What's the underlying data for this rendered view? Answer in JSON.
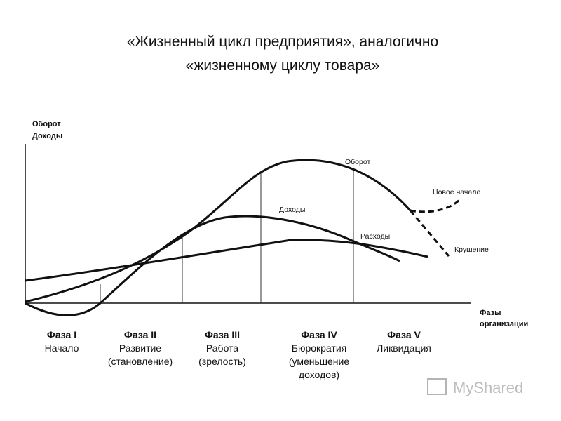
{
  "title": [
    "«Жизненный цикл предприятия», аналогично",
    "«жизненному циклу товара»"
  ],
  "axes": {
    "y_label": [
      "Оборот",
      "Доходы"
    ],
    "x_label": [
      "Фазы",
      "организации"
    ]
  },
  "curve_labels": {
    "turnover": "Оборот",
    "income": "Доходы",
    "expenses": "Расходы",
    "new_start": "Новое начало",
    "crash": "Крушение"
  },
  "phases": [
    {
      "name": "Фаза I",
      "description": [
        "Начало"
      ]
    },
    {
      "name": "Фаза II",
      "description": [
        "Развитие",
        "(становление)"
      ]
    },
    {
      "name": "Фаза III",
      "description": [
        "Работа",
        "(зрелость)"
      ]
    },
    {
      "name": "Фаза IV",
      "description": [
        "Бюрократия",
        "(уменьшение",
        "доходов)"
      ]
    },
    {
      "name": "Фаза V",
      "description": [
        "Ликвидация"
      ]
    }
  ],
  "watermark": "MyShared"
}
